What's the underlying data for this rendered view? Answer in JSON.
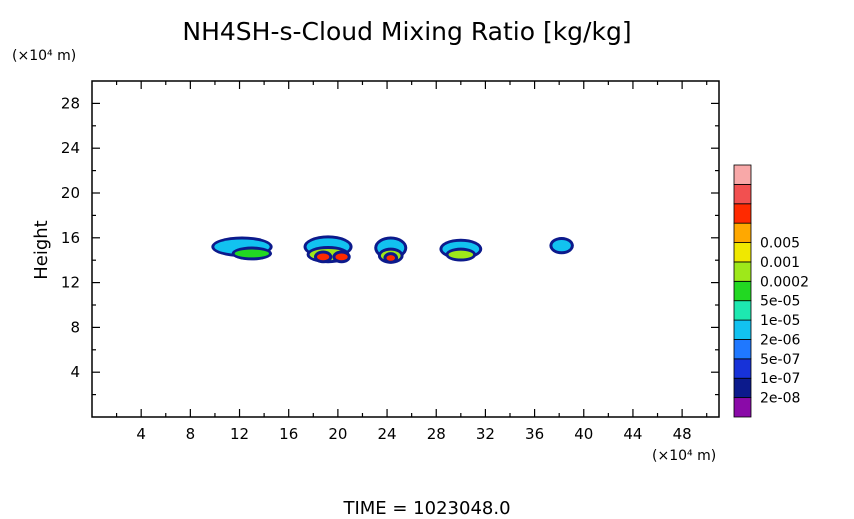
{
  "chart_data": {
    "type": "heatmap",
    "title": "NH4SH-s-Cloud Mixing Ratio [kg/kg]",
    "ylabel": "Height",
    "y_unit": "(×10⁴ m)",
    "x_unit": "(×10⁴ m)",
    "xlim": [
      0,
      51
    ],
    "ylim": [
      0,
      30
    ],
    "x_ticks": [
      4,
      8,
      12,
      16,
      20,
      24,
      28,
      32,
      36,
      40,
      44,
      48
    ],
    "y_ticks": [
      4,
      8,
      12,
      16,
      20,
      24,
      28
    ],
    "footer": "TIME  =  1023048.0",
    "colorbar": {
      "labels": [
        "0.005",
        "0.001",
        "0.0002",
        "5e-05",
        "1e-05",
        "2e-06",
        "5e-07",
        "1e-07",
        "2e-08"
      ],
      "colors": [
        "#8a0aa8",
        "#0c1a8c",
        "#1732d8",
        "#1f78ff",
        "#12c2f0",
        "#1de8b0",
        "#22d822",
        "#9ee81a",
        "#f0e800",
        "#ffa800",
        "#ff2a00",
        "#f25050",
        "#f8a8a8"
      ]
    },
    "cloud_cells": [
      {
        "x": 12.2,
        "y": 15.2,
        "w": 4.5,
        "h": 1.3,
        "level": 4
      },
      {
        "x": 13.0,
        "y": 14.6,
        "w": 2.8,
        "h": 0.7,
        "level": 6
      },
      {
        "x": 19.2,
        "y": 15.2,
        "w": 3.5,
        "h": 1.5,
        "level": 4
      },
      {
        "x": 19.2,
        "y": 14.5,
        "w": 3.0,
        "h": 1.0,
        "level": 7
      },
      {
        "x": 18.8,
        "y": 14.3,
        "w": 1.0,
        "h": 0.6,
        "level": 10
      },
      {
        "x": 20.3,
        "y": 14.3,
        "w": 1.0,
        "h": 0.6,
        "level": 10
      },
      {
        "x": 24.3,
        "y": 15.1,
        "w": 2.2,
        "h": 1.5,
        "level": 4
      },
      {
        "x": 24.3,
        "y": 14.4,
        "w": 1.6,
        "h": 0.9,
        "level": 7
      },
      {
        "x": 24.3,
        "y": 14.2,
        "w": 0.7,
        "h": 0.5,
        "level": 10
      },
      {
        "x": 30.0,
        "y": 15.0,
        "w": 3.0,
        "h": 1.3,
        "level": 4
      },
      {
        "x": 30.0,
        "y": 14.5,
        "w": 2.0,
        "h": 0.7,
        "level": 7
      },
      {
        "x": 38.2,
        "y": 15.3,
        "w": 1.5,
        "h": 1.0,
        "level": 4
      }
    ]
  }
}
